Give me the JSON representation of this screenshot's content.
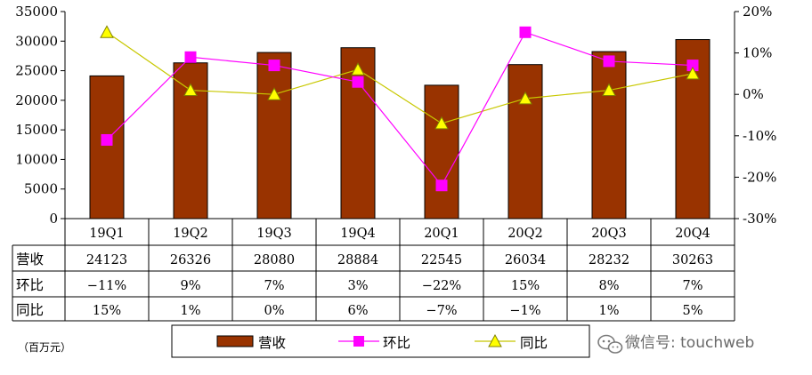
{
  "chart_data": {
    "type": "bar",
    "categories": [
      "19Q1",
      "19Q2",
      "19Q3",
      "19Q4",
      "20Q1",
      "20Q2",
      "20Q3",
      "20Q4"
    ],
    "series": [
      {
        "name": "营收",
        "kind": "bar",
        "axis": "left",
        "values": [
          24123,
          26326,
          28080,
          28884,
          22545,
          26034,
          28232,
          30263
        ]
      },
      {
        "name": "环比",
        "kind": "line",
        "axis": "right",
        "values": [
          -11,
          9,
          7,
          3,
          -22,
          15,
          8,
          7
        ]
      },
      {
        "name": "同比",
        "kind": "line",
        "axis": "right",
        "values": [
          15,
          1,
          0,
          6,
          -7,
          -1,
          1,
          5
        ]
      }
    ],
    "left_axis": {
      "ylim": [
        0,
        35000
      ],
      "ticks": [
        "0",
        "5000",
        "10000",
        "15000",
        "20000",
        "25000",
        "30000",
        "35000"
      ]
    },
    "right_axis": {
      "ylim": [
        -30,
        20
      ],
      "ticks": [
        "-30%",
        "-20%",
        "-10%",
        "0%",
        "10%",
        "20%"
      ]
    },
    "table": {
      "rows": [
        {
          "label": "营收",
          "cells": [
            "24123",
            "26326",
            "28080",
            "28884",
            "22545",
            "26034",
            "28232",
            "30263"
          ]
        },
        {
          "label": "环比",
          "cells": [
            "−11%",
            "9%",
            "7%",
            "3%",
            "−22%",
            "15%",
            "8%",
            "7%"
          ]
        },
        {
          "label": "同比",
          "cells": [
            "15%",
            "1%",
            "0%",
            "6%",
            "−7%",
            "−1%",
            "1%",
            "5%"
          ]
        }
      ]
    },
    "unit_label": "（百万元）",
    "legend": [
      "营收",
      "环比",
      "同比"
    ],
    "grid": false,
    "colors": {
      "bar": "#993300",
      "qoq": "#ff00ff",
      "yoy": "#c8c800",
      "yoy_marker": "#ffff00"
    }
  },
  "watermark": {
    "text": "微信号: touchweb",
    "icon": "wechat-icon"
  }
}
